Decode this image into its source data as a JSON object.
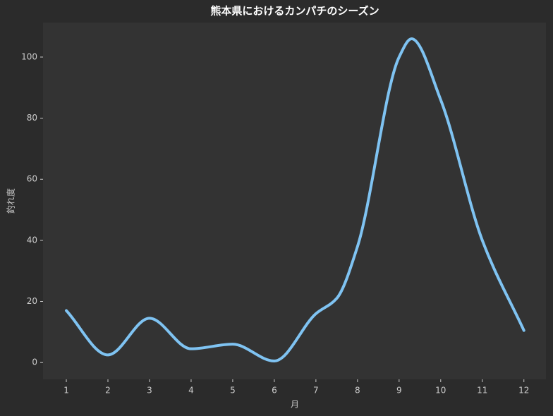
{
  "chart_data": {
    "type": "line",
    "title": "熊本県におけるカンパチのシーズン",
    "x_label": "月",
    "y_label": "釣れ度",
    "x": [
      1,
      2,
      3,
      4,
      5,
      6,
      7,
      7.5,
      8,
      9,
      9.3,
      10,
      11,
      12
    ],
    "series": [
      {
        "name": "釣れ度",
        "color": "#7fc3f2",
        "values": [
          17,
          2.5,
          14.5,
          4.5,
          6,
          0.5,
          16,
          21,
          38,
          100,
          106,
          86,
          40,
          10.5
        ]
      }
    ],
    "xlim": [
      0.44,
      12.53
    ],
    "ylim": [
      -5.5,
      111.3
    ],
    "xticks": [
      1,
      2,
      3,
      4,
      5,
      6,
      7,
      8,
      9,
      10,
      11,
      12
    ],
    "yticks": [
      0,
      20,
      40,
      60,
      80,
      100
    ],
    "grid": false
  }
}
